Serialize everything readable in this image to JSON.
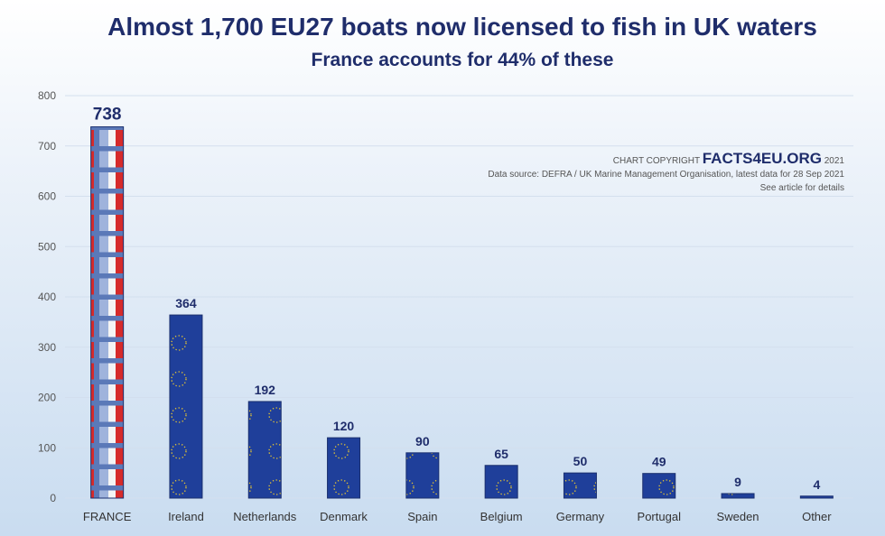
{
  "chart_data": {
    "type": "bar",
    "title": "Almost 1,700 EU27 boats now licensed to fish in UK waters",
    "subtitle": "France accounts for 44% of these",
    "categories": [
      "FRANCE",
      "Ireland",
      "Netherlands",
      "Denmark",
      "Spain",
      "Belgium",
      "Germany",
      "Portugal",
      "Sweden",
      "Other"
    ],
    "values": [
      738,
      364,
      192,
      120,
      90,
      65,
      50,
      49,
      9,
      4
    ],
    "xlabel": "",
    "ylabel": "",
    "ylim": [
      0,
      800
    ],
    "yticks": [
      0,
      100,
      200,
      300,
      400,
      500,
      600,
      700,
      800
    ],
    "grid": true,
    "bar_fill": [
      "french-flag-pattern",
      "eu-flag-pattern"
    ],
    "colors": {
      "eu_blue": "#1f3f9a",
      "title": "#1f2d6b"
    }
  },
  "credit": {
    "prefix": "CHART COPYRIGHT",
    "brand": "FACTS4EU.ORG",
    "year": "2021",
    "source": "Data source: DEFRA / UK Marine Management Organisation, latest data for 28 Sep 2021",
    "note": "See article for details"
  }
}
